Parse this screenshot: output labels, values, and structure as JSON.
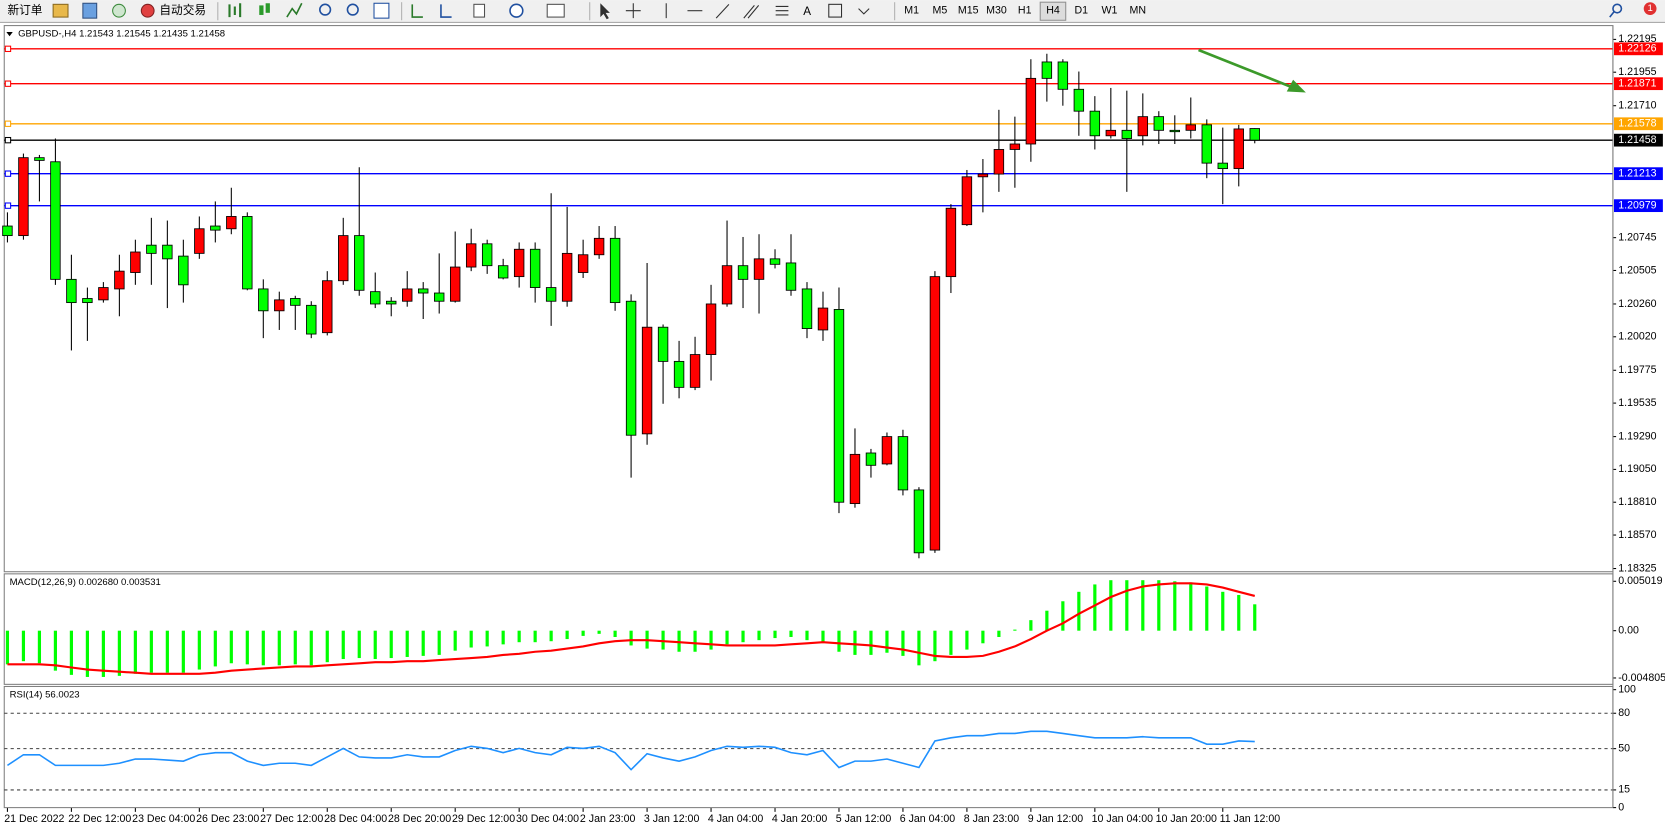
{
  "toolbar": {
    "new_order": "新订单",
    "auto_trading": "自动交易",
    "timeframes": [
      "M1",
      "M5",
      "M15",
      "M30",
      "H1",
      "H4",
      "D1",
      "W1",
      "MN"
    ],
    "active_timeframe": "H4",
    "notification_count": "1"
  },
  "chart_data": [
    {
      "type": "candlestick",
      "title": "GBPUSD-,H4  1.21543 1.21545 1.21435 1.21458",
      "categories": [
        "21 Dec 2022",
        null,
        null,
        null,
        "22 Dec 12:00",
        null,
        null,
        null,
        "23 Dec 04:00",
        null,
        null,
        null,
        "26 Dec 23:00",
        null,
        null,
        null,
        "27 Dec 12:00",
        null,
        null,
        null,
        "28 Dec 04:00",
        null,
        null,
        null,
        "28 Dec 20:00",
        null,
        null,
        null,
        "29 Dec 12:00",
        null,
        null,
        null,
        "30 Dec 04:00",
        null,
        null,
        null,
        "2 Jan 23:00",
        null,
        null,
        null,
        "3 Jan 12:00",
        null,
        null,
        null,
        "4 Jan 04:00",
        null,
        null,
        null,
        "4 Jan 20:00",
        null,
        null,
        null,
        "5 Jan 12:00",
        null,
        null,
        null,
        "6 Jan 04:00",
        null,
        null,
        null,
        "8 Jan 23:00",
        null,
        null,
        null,
        "9 Jan 12:00",
        null,
        null,
        null,
        "10 Jan 04:00",
        null,
        null,
        null,
        "10 Jan 20:00",
        null,
        null,
        null,
        "11 Jan 12:00",
        null,
        null
      ],
      "open": [
        1.2083,
        1.2076,
        1.2133,
        1.213,
        1.2044,
        1.203,
        1.2029,
        1.2037,
        1.2049,
        1.2069,
        1.2069,
        1.2061,
        1.2063,
        1.2083,
        1.2081,
        1.209,
        1.2037,
        1.2021,
        1.203,
        1.2025,
        1.2005,
        1.2043,
        1.2076,
        1.2035,
        1.2028,
        1.2028,
        1.2037,
        1.2034,
        1.2028,
        1.2053,
        1.207,
        1.2054,
        1.2046,
        1.2066,
        1.2038,
        1.2028,
        1.2049,
        1.2062,
        1.2074,
        1.2028,
        1.1931,
        1.2009,
        1.1984,
        1.1965,
        1.1989,
        1.2026,
        1.2054,
        1.2044,
        1.2059,
        1.2056,
        1.2037,
        1.2007,
        1.2022,
        1.188,
        1.1917,
        1.1909,
        1.1929,
        1.189,
        1.1846,
        1.2046,
        1.2084,
        1.2119,
        1.2121,
        1.2139,
        1.2143,
        1.2203,
        1.2203,
        1.2183,
        1.2167,
        1.2149,
        1.2153,
        1.2149,
        1.2163,
        1.2153,
        1.2153,
        1.2157,
        1.2129,
        1.2125,
        1.21543
      ],
      "high": [
        1.2093,
        1.2136,
        1.2135,
        1.2147,
        1.2062,
        1.2038,
        1.2042,
        1.2062,
        1.2073,
        1.2089,
        1.2087,
        1.2073,
        1.209,
        1.2101,
        1.2111,
        1.2093,
        1.2044,
        1.2035,
        1.2032,
        1.2028,
        1.205,
        1.2089,
        1.2126,
        1.2049,
        1.2031,
        1.205,
        1.2042,
        1.2063,
        1.2079,
        1.2081,
        1.2073,
        1.2059,
        1.2071,
        1.2071,
        1.2107,
        1.2097,
        1.2073,
        1.2083,
        1.2083,
        1.2033,
        1.2056,
        1.2011,
        1.1999,
        1.2002,
        1.204,
        1.2087,
        1.2075,
        1.2077,
        1.2066,
        1.2077,
        1.2042,
        1.2035,
        1.2038,
        1.1935,
        1.192,
        1.1932,
        1.1934,
        1.1892,
        1.205,
        1.2099,
        1.2124,
        1.2132,
        1.2168,
        1.2163,
        1.2205,
        1.2209,
        1.2205,
        1.2196,
        1.2178,
        1.2184,
        1.2182,
        1.218,
        1.2167,
        1.2164,
        1.2177,
        1.2161,
        1.2155,
        1.2157,
        1.21545
      ],
      "low": [
        1.2071,
        1.2073,
        1.2101,
        1.204,
        1.1992,
        1.1999,
        1.2027,
        1.2017,
        1.204,
        1.204,
        1.2023,
        1.2027,
        1.2059,
        1.2071,
        1.2077,
        1.2036,
        1.2001,
        1.2007,
        1.2007,
        1.2001,
        1.2003,
        1.204,
        1.2032,
        1.2023,
        1.2017,
        1.2024,
        1.2015,
        1.2019,
        1.2027,
        1.205,
        1.2048,
        1.2044,
        1.2038,
        1.2027,
        1.201,
        1.2024,
        1.2045,
        1.2059,
        1.2021,
        1.1899,
        1.1923,
        1.1953,
        1.1957,
        1.1963,
        1.197,
        1.2024,
        1.2023,
        1.2019,
        1.2052,
        1.2032,
        1.2001,
        1.1999,
        1.1873,
        1.1877,
        1.1899,
        1.1908,
        1.1886,
        1.184,
        1.1844,
        1.2034,
        1.2083,
        1.2093,
        1.2108,
        1.2111,
        1.213,
        1.2174,
        1.2171,
        1.2149,
        1.2139,
        1.2147,
        1.2108,
        1.2142,
        1.2143,
        1.2143,
        1.2147,
        1.2118,
        1.2099,
        1.2112,
        1.21435
      ],
      "close": [
        1.2076,
        1.2133,
        1.2131,
        1.2044,
        1.2027,
        1.2027,
        1.2038,
        1.205,
        1.2064,
        1.2063,
        1.2059,
        1.204,
        1.2081,
        1.208,
        1.209,
        1.2037,
        1.2021,
        1.2029,
        1.2025,
        1.2004,
        1.2043,
        1.2076,
        1.2036,
        1.2026,
        1.2026,
        1.2037,
        1.2034,
        1.2028,
        1.2053,
        1.207,
        1.2054,
        1.2045,
        1.2066,
        1.2038,
        1.2028,
        1.2063,
        1.2062,
        1.2074,
        1.2027,
        1.193,
        1.2009,
        1.1984,
        1.1965,
        1.1989,
        1.2026,
        1.2054,
        1.2044,
        1.2059,
        1.2055,
        1.2036,
        1.2008,
        1.2023,
        1.1881,
        1.1916,
        1.1908,
        1.1929,
        1.189,
        1.1844,
        1.2046,
        1.2096,
        1.2119,
        1.2121,
        1.2139,
        1.2143,
        1.2191,
        1.2191,
        1.2183,
        1.2167,
        1.2149,
        1.2153,
        1.2147,
        1.2163,
        1.2153,
        1.2152,
        1.2157,
        1.2129,
        1.2125,
        1.2154,
        1.21458
      ],
      "up_color": "#ff0000",
      "down_color": "#00ff00",
      "ylim": [
        1.18325,
        1.22195
      ],
      "yticks": [
        1.18325,
        {
          "value": 1.1857,
          "label": "1.18570"
        },
        {
          "value": 1.1881,
          "label": "1.18810"
        },
        {
          "value": 1.1905,
          "label": "1.19050"
        },
        {
          "value": 1.1929,
          "label": "1.19290"
        },
        1.19535,
        1.19775,
        {
          "value": 1.2002,
          "label": "1.20020"
        },
        {
          "value": 1.2026,
          "label": "1.20260"
        },
        1.20505,
        1.20745,
        {
          "value": 1.2171,
          "label": "1.21710"
        },
        1.21955,
        1.22195
      ],
      "hlines": [
        {
          "value": 1.22126,
          "color": "#ff0000"
        },
        {
          "value": 1.21871,
          "color": "#ff0000"
        },
        {
          "value": 1.21578,
          "color": "#ffa500"
        },
        {
          "value": 1.21458,
          "color": "#000000"
        },
        {
          "value": 1.21213,
          "color": "#0000ff"
        },
        {
          "value": 1.20979,
          "color": "#0000ff"
        }
      ]
    },
    {
      "type": "macd",
      "title": "MACD(12,26,9) 0.002680 0.003531",
      "histogram": {
        "color": "#00ff00",
        "values": [
          -0.00342,
          -0.0031,
          -0.00331,
          -0.00406,
          -0.00449,
          -0.0047,
          -0.0047,
          -0.00459,
          -0.00438,
          -0.00427,
          -0.00427,
          -0.00427,
          -0.00395,
          -0.00363,
          -0.00331,
          -0.00342,
          -0.00352,
          -0.00352,
          -0.00342,
          -0.00352,
          -0.0032,
          -0.00288,
          -0.00278,
          -0.00288,
          -0.00278,
          -0.00267,
          -0.00256,
          -0.00246,
          -0.00203,
          -0.00171,
          -0.0016,
          -0.00139,
          -0.00117,
          -0.00117,
          -0.00107,
          -0.00085,
          -0.00053,
          -0.00032,
          -0.00064,
          -0.0015,
          -0.00182,
          -0.00192,
          -0.00214,
          -0.00214,
          -0.00192,
          -0.00139,
          -0.00117,
          -0.00096,
          -0.00075,
          -0.00064,
          -0.00096,
          -0.00117,
          -0.00214,
          -0.00246,
          -0.00246,
          -0.00224,
          -0.00256,
          -0.00352,
          -0.0031,
          -0.00246,
          -0.00192,
          -0.00128,
          -0.00064,
          0.00011,
          0.00107,
          0.00203,
          0.00299,
          0.00395,
          0.0047,
          0.00513,
          0.00513,
          0.00513,
          0.00513,
          0.00502,
          0.00491,
          0.00449,
          0.00395,
          0.00363,
          0.00268
        ]
      },
      "signal": {
        "color": "#ff0000",
        "values": [
          -0.00342,
          -0.00342,
          -0.00342,
          -0.00352,
          -0.00374,
          -0.00395,
          -0.00406,
          -0.00417,
          -0.00427,
          -0.00438,
          -0.00438,
          -0.00438,
          -0.00438,
          -0.00427,
          -0.00406,
          -0.00395,
          -0.00384,
          -0.00374,
          -0.00363,
          -0.00363,
          -0.00352,
          -0.00342,
          -0.00331,
          -0.0032,
          -0.0032,
          -0.0031,
          -0.0031,
          -0.00299,
          -0.00288,
          -0.00278,
          -0.00267,
          -0.00246,
          -0.00235,
          -0.00214,
          -0.00203,
          -0.00182,
          -0.0016,
          -0.00128,
          -0.00107,
          -0.00096,
          -0.00096,
          -0.00107,
          -0.00117,
          -0.00128,
          -0.00139,
          -0.0015,
          -0.0015,
          -0.0015,
          -0.0015,
          -0.00139,
          -0.00128,
          -0.00117,
          -0.00128,
          -0.00139,
          -0.0015,
          -0.00171,
          -0.00192,
          -0.00224,
          -0.00256,
          -0.00267,
          -0.00267,
          -0.00256,
          -0.00214,
          -0.0016,
          -0.00085,
          0,
          0.00075,
          0.00171,
          0.00256,
          0.00342,
          0.00406,
          0.00449,
          0.0047,
          0.00481,
          0.00481,
          0.0047,
          0.00438,
          0.00395,
          0.003531
        ]
      },
      "ylim": [
        -0.004805,
        0.005019
      ],
      "yticks": [
        -0.004805,
        {
          "value": 0,
          "label": "0.00"
        },
        0.005019
      ]
    },
    {
      "type": "line",
      "title": "RSI(14) 56.0023",
      "color": "#1e90ff",
      "values": [
        35.8,
        44.8,
        44.8,
        35.8,
        35.8,
        35.8,
        35.8,
        37.6,
        41.2,
        41.2,
        40.3,
        39.4,
        44.8,
        46.6,
        46.6,
        39.4,
        35.8,
        37.6,
        37.6,
        35.8,
        43.0,
        50.2,
        43.0,
        42.1,
        42.1,
        44.8,
        43.0,
        43.0,
        48.4,
        52.0,
        50.2,
        46.6,
        50.2,
        46.6,
        44.8,
        51.1,
        50.2,
        52.0,
        46.6,
        32.2,
        45.7,
        42.1,
        39.4,
        43.0,
        48.4,
        52.0,
        51.1,
        52.0,
        51.1,
        46.6,
        44.8,
        48.4,
        34.0,
        39.4,
        39.4,
        41.2,
        37.6,
        34.0,
        56.5,
        59.2,
        61.0,
        61.0,
        62.9,
        62.9,
        64.7,
        64.7,
        62.9,
        61.0,
        59.2,
        59.2,
        59.2,
        60.1,
        59.2,
        59.2,
        59.2,
        53.8,
        53.8,
        56.5,
        56.0023
      ],
      "ylim": [
        0,
        100
      ],
      "yticks": [
        0,
        15,
        50,
        80,
        100
      ],
      "grid": true
    }
  ]
}
